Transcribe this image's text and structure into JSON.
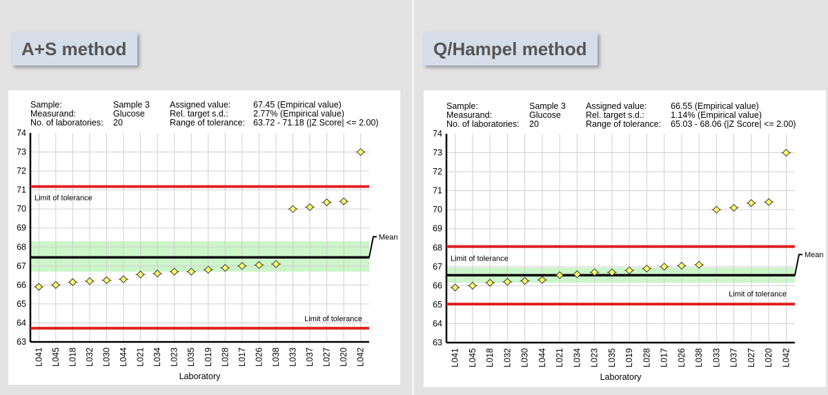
{
  "colors": {
    "limit": "#e02020",
    "mean": "#000000",
    "band": "#ccf5c9",
    "marker_fill": "#ffff66",
    "grid": "#cfcfcf",
    "label_bg": "#d4dde8"
  },
  "panels": [
    {
      "method_label": "A+S method",
      "info": {
        "sample_label": "Sample:",
        "sample": "Sample 3",
        "measurand_label": "Measurand:",
        "measurand": "Glucose",
        "labs_label": "No. of laboratories:",
        "labs": "20",
        "assigned_label": "Assigned value:",
        "assigned": "67.45  (Empirical value)",
        "reltarget_label": "Rel. target s.d.:",
        "reltarget": "2.77% (Empirical value)",
        "range_label": "Range of tolerance:",
        "range": "63.72 - 71.18  (|Z Score| <= 2.00)"
      },
      "upper_limit_label": "Limit of tolerance",
      "lower_limit_label": "Limit of tolerance",
      "mean_label": "Mean",
      "chart_data": {
        "type": "scatter",
        "categories": [
          "L041",
          "L045",
          "L018",
          "L032",
          "L030",
          "L044",
          "L021",
          "L034",
          "L023",
          "L035",
          "L019",
          "L028",
          "L017",
          "L026",
          "L038",
          "L033",
          "L037",
          "L027",
          "L020",
          "L042"
        ],
        "values": [
          65.9,
          66.0,
          66.15,
          66.2,
          66.25,
          66.3,
          66.55,
          66.6,
          66.7,
          66.7,
          66.8,
          66.9,
          67.0,
          67.05,
          67.1,
          70.0,
          70.1,
          70.35,
          70.4,
          73.0
        ],
        "xlabel": "Laboratory",
        "ylim": [
          63,
          74
        ],
        "mean": 67.45,
        "upper_limit": 71.18,
        "lower_limit": 63.72,
        "band": [
          66.7,
          68.3
        ],
        "grid": true
      }
    },
    {
      "method_label": "Q/Hampel method",
      "info": {
        "sample_label": "Sample:",
        "sample": "Sample 3",
        "measurand_label": "Measurand:",
        "measurand": "Glucose",
        "labs_label": "No. of laboratories:",
        "labs": "20",
        "assigned_label": "Assigned value:",
        "assigned": "66.55  (Empirical value)",
        "reltarget_label": "Rel. target s.d.:",
        "reltarget": "1.14% (Empirical value)",
        "range_label": "Range of tolerance:",
        "range": "65.03 - 68.06  (|Z Score| <= 2.00)"
      },
      "upper_limit_label": "Limit of tolerance",
      "lower_limit_label": "Limit of tolerance",
      "mean_label": "Mean",
      "chart_data": {
        "type": "scatter",
        "categories": [
          "L041",
          "L045",
          "L018",
          "L032",
          "L030",
          "L044",
          "L021",
          "L034",
          "L023",
          "L035",
          "L019",
          "L028",
          "L017",
          "L026",
          "L038",
          "L033",
          "L037",
          "L027",
          "L020",
          "L042"
        ],
        "values": [
          65.9,
          66.0,
          66.15,
          66.2,
          66.25,
          66.3,
          66.55,
          66.6,
          66.7,
          66.7,
          66.8,
          66.9,
          67.0,
          67.05,
          67.1,
          70.0,
          70.1,
          70.35,
          70.4,
          73.0
        ],
        "xlabel": "Laboratory",
        "ylim": [
          63,
          74
        ],
        "mean": 66.55,
        "upper_limit": 68.06,
        "lower_limit": 65.03,
        "band": [
          66.15,
          66.95
        ],
        "grid": true
      }
    }
  ]
}
